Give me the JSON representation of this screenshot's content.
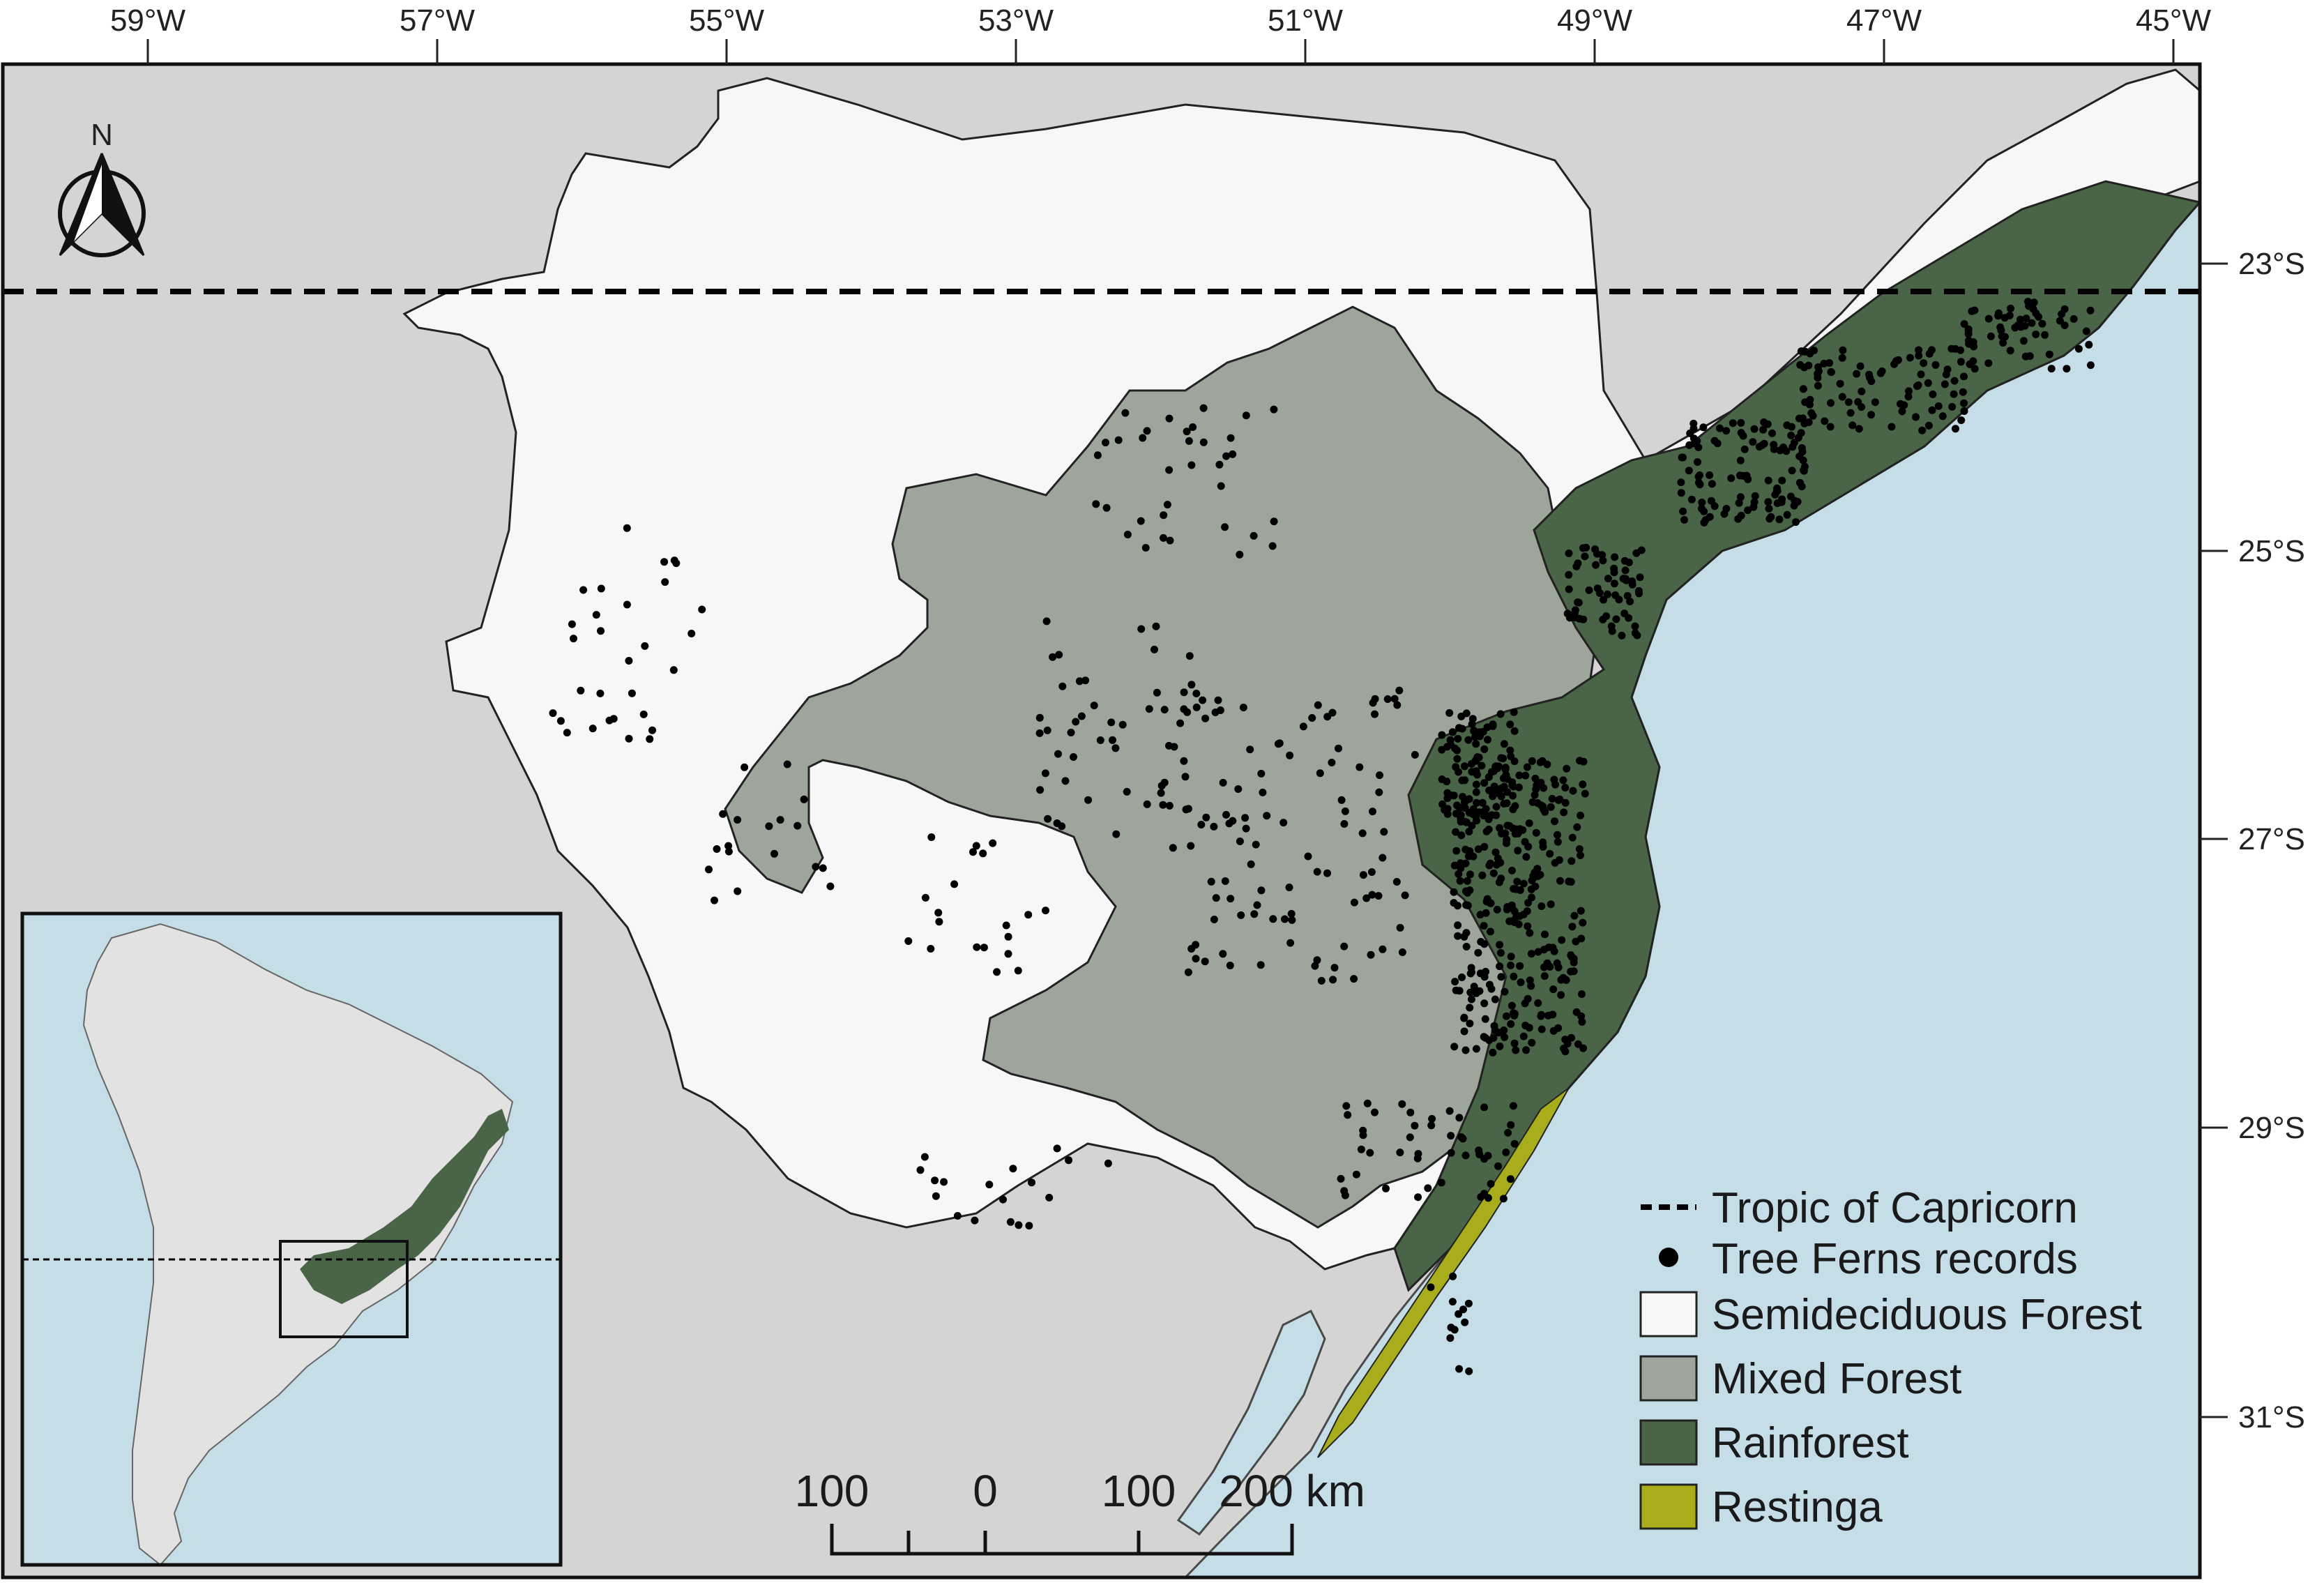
{
  "map": {
    "lon_labels": [
      "59°W",
      "57°W",
      "55°W",
      "53°W",
      "51°W",
      "49°W",
      "47°W",
      "45°W"
    ],
    "lat_labels": [
      "23°S",
      "25°S",
      "27°S",
      "29°S",
      "31°S"
    ],
    "north_arrow": {
      "label": "N"
    },
    "scale_bar": {
      "labels": [
        "100",
        "0",
        "100",
        "200 km"
      ]
    },
    "legend": {
      "items": [
        {
          "label": "Tropic of Capricorn",
          "symbol": "dashed-line",
          "color": "#000000"
        },
        {
          "label": "Tree Ferns records",
          "symbol": "dot",
          "color": "#000000"
        },
        {
          "label": "Semideciduous Forest",
          "symbol": "box",
          "color": "#f7f7f7"
        },
        {
          "label": "Mixed Forest",
          "symbol": "box",
          "color": "#9ea69c"
        },
        {
          "label": "Rainforest",
          "symbol": "box",
          "color": "#4a6447"
        },
        {
          "label": "Restinga",
          "symbol": "box",
          "color": "#a9ad1c"
        }
      ]
    },
    "colors": {
      "ocean": "#c5dde6",
      "land": "#d4d4d4",
      "inset_land": "#e2e2e2"
    },
    "inset": {
      "icon": "south-america-locator"
    }
  }
}
